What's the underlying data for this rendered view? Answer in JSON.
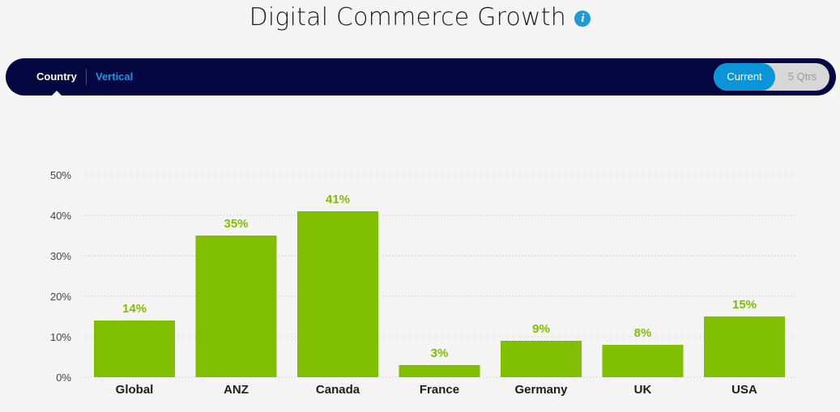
{
  "header": {
    "title": "Digital Commerce Growth",
    "info_icon": "i"
  },
  "nav": {
    "tabs": [
      {
        "label": "Country",
        "active": true
      },
      {
        "label": "Vertical",
        "active": false
      }
    ],
    "toggle": {
      "current_label": "Current",
      "quarters_label": "5 Qtrs",
      "selected": "Current"
    }
  },
  "colors": {
    "bar": "#80bf00",
    "navbar": "#030640",
    "accent": "#0a95d8",
    "link": "#1a98e0"
  },
  "chart_data": {
    "type": "bar",
    "categories": [
      "Global",
      "ANZ",
      "Canada",
      "France",
      "Germany",
      "UK",
      "USA"
    ],
    "values": [
      14,
      35,
      41,
      3,
      9,
      8,
      15
    ],
    "value_labels": [
      "14%",
      "35%",
      "41%",
      "3%",
      "9%",
      "8%",
      "15%"
    ],
    "ylim": [
      0,
      50
    ],
    "yticks": [
      0,
      10,
      20,
      30,
      40,
      50
    ],
    "ytick_labels": [
      "0%",
      "10%",
      "20%",
      "30%",
      "40%",
      "50%"
    ],
    "grid": "dotted horizontal",
    "legend": "none"
  }
}
